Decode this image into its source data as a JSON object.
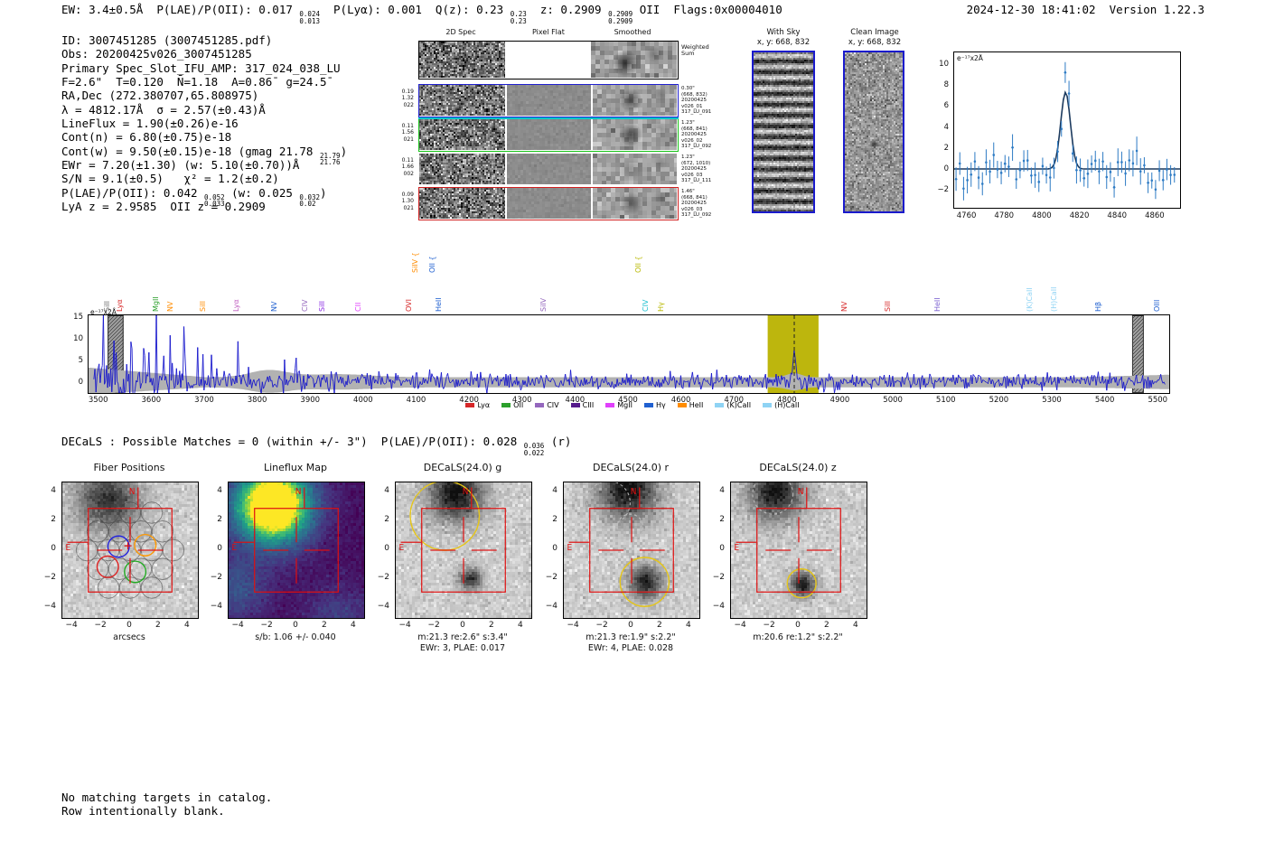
{
  "header": {
    "segments": [
      {
        "t": "EW: 3.4±0.5Å  P(LAE)/P(OII): 0.017 "
      },
      {
        "frac": [
          "0.024",
          "0.013"
        ]
      },
      {
        "t": "  P(Lyα): 0.001  Q(z): 0.23 "
      },
      {
        "frac": [
          "0.23",
          "0.23"
        ]
      },
      {
        "t": "  z: 0.2909 "
      },
      {
        "frac": [
          "0.2909",
          "0.2909"
        ]
      },
      {
        "t": " OII  Flags:0x00004010"
      }
    ],
    "timestamp": "2024-12-30 18:41:02  Version 1.22.3"
  },
  "info": {
    "lines": [
      [
        {
          "t": "ID: 3007451285 (3007451285.pdf)"
        }
      ],
      [
        {
          "t": "Obs: 20200425v026_3007451285"
        }
      ],
      [
        {
          "t": "Primary Spec_Slot_IFU_AMP: 317_024_038_LU"
        }
      ],
      [
        {
          "t": "F=2.6\"  T=0.120  N̄=1.18  A=0.86̄  g=24.5̄"
        }
      ],
      [
        {
          "t": "RA,Dec (272.380707,65.808975)"
        }
      ],
      [
        {
          "t": "λ = 4812.17Å  σ = 2.57(±0.43)Å"
        }
      ],
      [
        {
          "t": "LineFlux = 1.90(±0.26)e-16"
        }
      ],
      [
        {
          "t": "Cont(n) = 6.80(±0.75)e-18"
        }
      ],
      [
        {
          "t": "Cont(w) = 9.50(±0.15)e-18 (gmag 21.78 "
        },
        {
          "frac": [
            "21.79",
            "21.76"
          ]
        },
        {
          "t": ")"
        }
      ],
      [
        {
          "t": "EWr = 7.20(±1.30) (w: 5.10(±0.70))Å"
        }
      ],
      [
        {
          "t": "S/N = 9.1(±0.5)   χ² = 1.2(±0.2)"
        }
      ],
      [
        {
          "t": "P(LAE)/P(OII): 0.042 "
        },
        {
          "frac": [
            "0.052",
            "0.033"
          ]
        },
        {
          "t": " (w: 0.025 "
        },
        {
          "frac": [
            "0.032",
            "0.02"
          ]
        },
        {
          "t": ")"
        }
      ],
      [
        {
          "t": "LyA z = 2.9585  OII z = 0.2909"
        }
      ]
    ]
  },
  "spec2d": {
    "col_headers": [
      "2D Spec",
      "Pixel Flat",
      "Smoothed"
    ],
    "weighted_sum": [
      "Weighted",
      "Sum"
    ],
    "rows": [
      {
        "left": [
          "0.19",
          "1.32",
          "022"
        ],
        "right": [
          "0.30\"",
          "(668, 832)",
          "20200425",
          "v026_01",
          "317_LU_091"
        ],
        "border": "#2020d0",
        "blob": 0.55
      },
      {
        "left": [
          "0.11",
          "1.56",
          "021"
        ],
        "right": [
          "1.23\"",
          "(668, 841)",
          "20200425",
          "v026_02",
          "317_LU_092"
        ],
        "border": "#19c419",
        "blob": 0.6
      },
      {
        "left": [
          "0.11",
          "1.66",
          "002"
        ],
        "right": [
          "1.23\"",
          "(672, 1010)",
          "20200425",
          "v026_03",
          "317_LU_111"
        ],
        "border": "none",
        "blob": 0.2
      },
      {
        "left": [
          "0.09",
          "1.30",
          "021"
        ],
        "right": [
          "1.46\"",
          "(668, 841)",
          "20200425",
          "v026_03",
          "317_LU_092"
        ],
        "border": "#d02020",
        "blob": 0.45
      }
    ]
  },
  "with_sky": {
    "title": "With Sky",
    "coords": "x, y: 668, 832"
  },
  "clean_image": {
    "title": "Clean Image",
    "coords": "x, y: 668, 832"
  },
  "decals": {
    "segments": [
      {
        "t": "DECaLS : Possible Matches = 0 (within +/- 3\")  P(LAE)/P(OII): 0.028 "
      },
      {
        "frac": [
          "0.036",
          "0.022"
        ]
      },
      {
        "t": " (r)"
      }
    ]
  },
  "footer": {
    "lines": [
      "No matching targets in catalog.",
      "Row intentionally blank."
    ]
  },
  "chart_data": [
    {
      "name": "line_fit_zoom",
      "type": "scatter",
      "annotation": "e⁻¹⁷x2Å",
      "xlim": [
        4753,
        4873
      ],
      "ylim": [
        -3.6,
        11.2
      ],
      "x_ticks": [
        4760,
        4780,
        4800,
        4820,
        4840,
        4860
      ],
      "y_ticks": [
        -2,
        0,
        2,
        4,
        6,
        8,
        10
      ],
      "fit": {
        "center": 4812.17,
        "sigma": 2.57,
        "amplitude": 7.3,
        "baseline": 0.1
      },
      "points": {
        "x_start": 4754,
        "x_step": 2,
        "count": 59,
        "noise_sigma": 0.85,
        "err_bar": 1.05,
        "seed": 11
      },
      "colors": {
        "points": "#2e7bc4",
        "fit": "#1c3a5e"
      }
    },
    {
      "name": "full_spectrum",
      "type": "line",
      "annotation": "e⁻¹⁷x2Å",
      "xlim": [
        3480,
        5520
      ],
      "ylim": [
        -2.3,
        15.6
      ],
      "x_ticks": [
        3500,
        3600,
        3700,
        3800,
        3900,
        4000,
        4100,
        4200,
        4300,
        4400,
        4500,
        4600,
        4700,
        4800,
        4900,
        5000,
        5100,
        5200,
        5300,
        5400,
        5500
      ],
      "y_ticks": [
        0,
        5,
        10,
        15
      ],
      "emission_line": {
        "center": 4812.17,
        "sigma": 2.6,
        "amplitude": 8.3
      },
      "highlight_band": {
        "x0": 4762,
        "x1": 4858,
        "color": "rgba(185,178,0,0.95)"
      },
      "hatch_bands": [
        [
          3516,
          3546
        ],
        [
          5450,
          5472
        ]
      ],
      "dashed_line_x": 4812.17,
      "seed": 5,
      "line_color": "#1414cc",
      "err_color": "#b2b2b2",
      "forced_peaks": {
        "3508": 16,
        "3532": 7,
        "3560": 9.5,
        "3584": 8,
        "3608": 16,
        "3634": 11,
        "3660": 13,
        "3686": 8.2,
        "3712": 6.5,
        "3762": 9.6,
        "3850": 5.4,
        "3872": 5.8
      },
      "line_labels": [
        {
          "text": "SiII",
          "wl": 3516,
          "color": "#707070"
        },
        {
          "text": "Lyα",
          "wl": 3541,
          "color": "#d62728"
        },
        {
          "text": "MgII",
          "wl": 3608,
          "color": "#2ca02c"
        },
        {
          "text": "NV",
          "wl": 3636,
          "color": "#ff8c00"
        },
        {
          "text": "SiII",
          "wl": 3697,
          "color": "#ff8c00"
        },
        {
          "text": "Lyα",
          "wl": 3760,
          "color": "#c060c0"
        },
        {
          "text": "NV",
          "wl": 3833,
          "color": "#2060d0"
        },
        {
          "text": "CIV",
          "wl": 3891,
          "color": "#9467bd"
        },
        {
          "text": "SiII",
          "wl": 3922,
          "color": "#8a2be2"
        },
        {
          "text": "CII",
          "wl": 3991,
          "color": "#e040fb"
        },
        {
          "text": "OVI",
          "wl": 4087,
          "color": "#d62728"
        },
        {
          "text": "SiIV {",
          "wl": 4099,
          "color": "#ff8c00",
          "high": true
        },
        {
          "text": "OII {",
          "wl": 4130,
          "color": "#2060d0",
          "high": true
        },
        {
          "text": "HeII",
          "wl": 4142,
          "color": "#2060d0"
        },
        {
          "text": "SiIV",
          "wl": 4341,
          "color": "#9467bd"
        },
        {
          "text": "OII {",
          "wl": 4519,
          "color": "#b8b800",
          "high": true
        },
        {
          "text": "CIV",
          "wl": 4534,
          "color": "#17becf"
        },
        {
          "text": "Hγ",
          "wl": 4562,
          "color": "#b8b800"
        },
        {
          "text": "NV",
          "wl": 4909,
          "color": "#d62728"
        },
        {
          "text": "SiII",
          "wl": 4991,
          "color": "#d62728"
        },
        {
          "text": "HeII",
          "wl": 5085,
          "color": "#7a5fd0"
        },
        {
          "text": "(K)CaII",
          "wl": 5259,
          "color": "#8fd3f4"
        },
        {
          "text": "(H)CaII",
          "wl": 5304,
          "color": "#8fd3f4"
        },
        {
          "text": "Hβ",
          "wl": 5387,
          "color": "#2060d0"
        },
        {
          "text": "OIII",
          "wl": 5499,
          "color": "#2060d0"
        }
      ],
      "legend": [
        {
          "label": "Lyα",
          "color": "#d62728"
        },
        {
          "label": "OII",
          "color": "#2ca02c"
        },
        {
          "label": "CIV",
          "color": "#9467bd"
        },
        {
          "label": "CIII",
          "color": "#551a8b"
        },
        {
          "label": "MgII",
          "color": "#e040fb"
        },
        {
          "label": "Hγ",
          "color": "#2060d0"
        },
        {
          "label": "HeII",
          "color": "#ff8c00"
        },
        {
          "label": "(K)CaII",
          "color": "#8fd3f4"
        },
        {
          "label": "(H)CaII",
          "color": "#8fd3f4"
        }
      ]
    },
    {
      "name": "cutouts",
      "type": "heatmap",
      "arcsec_lim": [
        -4.7,
        4.7
      ],
      "ticks": [
        -4,
        -2,
        0,
        2,
        4
      ],
      "overlay": {
        "box": 2.9,
        "cross_inner": 0.55,
        "cross_outer": 2.3,
        "compass_color": "#e01010"
      },
      "panels": [
        {
          "title": "Fiber Positions",
          "kind": "fiber",
          "captions": [
            "arcsecs"
          ],
          "seed": 21,
          "blobs": [
            {
              "x": -1.6,
              "y": 3.6,
              "s": 1.5,
              "a": 0.75
            }
          ],
          "fiber_radius": 0.74,
          "colored_fibers": [
            {
              "x": -0.8,
              "y": 0.25,
              "color": "#2222dd"
            },
            {
              "x": 1.05,
              "y": 0.35,
              "color": "#ff9900"
            },
            {
              "x": -1.55,
              "y": -1.15,
              "color": "#dd2222"
            },
            {
              "x": 0.35,
              "y": -1.5,
              "color": "#22aa22"
            }
          ],
          "marker": {
            "x": -0.15,
            "y": 0.3
          }
        },
        {
          "title": "Lineflux Map",
          "kind": "viridis",
          "captions": [
            "s/b: 1.06 +/- 0.040"
          ],
          "seed": 22,
          "gaussians": [
            {
              "x": -1.7,
              "y": 3.2,
              "s": 1.9,
              "a": 1.35
            },
            {
              "x": -4.2,
              "y": -2.6,
              "s": 1.6,
              "a": 0.3
            },
            {
              "x": 2.8,
              "y": -4.6,
              "s": 1.6,
              "a": 0.22
            }
          ]
        },
        {
          "title": "DECaLS(24.0) g",
          "kind": "gray",
          "captions": [
            "m:21.3 re:2.6\" s:3.4\"",
            "EWr: 3, PLAE: 0.017"
          ],
          "seed": 23,
          "blobs": [
            {
              "x": -0.6,
              "y": 4.0,
              "s": 1.3,
              "a": 0.95
            },
            {
              "x": 0.4,
              "y": -1.9,
              "s": 0.55,
              "a": 0.75
            }
          ],
          "yellow_circles": [
            {
              "x": -1.3,
              "y": 2.4,
              "r": 2.4
            }
          ],
          "dashed_circles": [
            {
              "x": 0.5,
              "y": -1.9,
              "r": 1.3
            }
          ]
        },
        {
          "title": "DECaLS(24.0) r",
          "kind": "gray",
          "captions": [
            "m:21.3 re:1.9\" s:2.2\"",
            "EWr: 4, PLAE: 0.028"
          ],
          "seed": 24,
          "blobs": [
            {
              "x": -0.3,
              "y": 4.3,
              "s": 1.4,
              "a": 0.95
            },
            {
              "x": 0.9,
              "y": -2.1,
              "s": 0.8,
              "a": 0.85
            }
          ],
          "yellow_circles": [
            {
              "x": 0.9,
              "y": -2.2,
              "r": 1.7
            }
          ],
          "dashed_circles": [
            {
              "x": -1.6,
              "y": 3.3,
              "r": 1.5
            },
            {
              "x": -0.1,
              "y": 1.6,
              "r": 0.9
            }
          ]
        },
        {
          "title": "DECaLS(24.0) z",
          "kind": "gray",
          "captions": [
            "m:20.6 re:1.2\" s:2.2\""
          ],
          "seed": 25,
          "blobs": [
            {
              "x": -1.7,
              "y": 4.1,
              "s": 1.3,
              "a": 0.9
            },
            {
              "x": 0.2,
              "y": -2.3,
              "s": 0.6,
              "a": 0.85
            }
          ],
          "yellow_circles": [
            {
              "x": 0.2,
              "y": -2.3,
              "r": 1.0
            }
          ],
          "dashed_circles": [
            {
              "x": -1.8,
              "y": 3.9,
              "r": 1.4
            }
          ]
        }
      ]
    }
  ]
}
